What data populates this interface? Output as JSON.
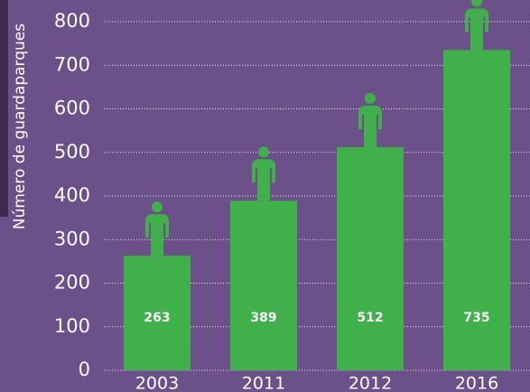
{
  "chart_data": {
    "type": "bar",
    "y_label": "Número de guardaparques",
    "categories": [
      "2003",
      "2011",
      "2012",
      "2016"
    ],
    "values": [
      263,
      389,
      512,
      735
    ],
    "color": "#3fb04a",
    "ylim": [
      0,
      800
    ],
    "yticks": [
      0,
      100,
      200,
      300,
      400,
      500,
      600,
      700,
      800
    ],
    "grid": true
  }
}
